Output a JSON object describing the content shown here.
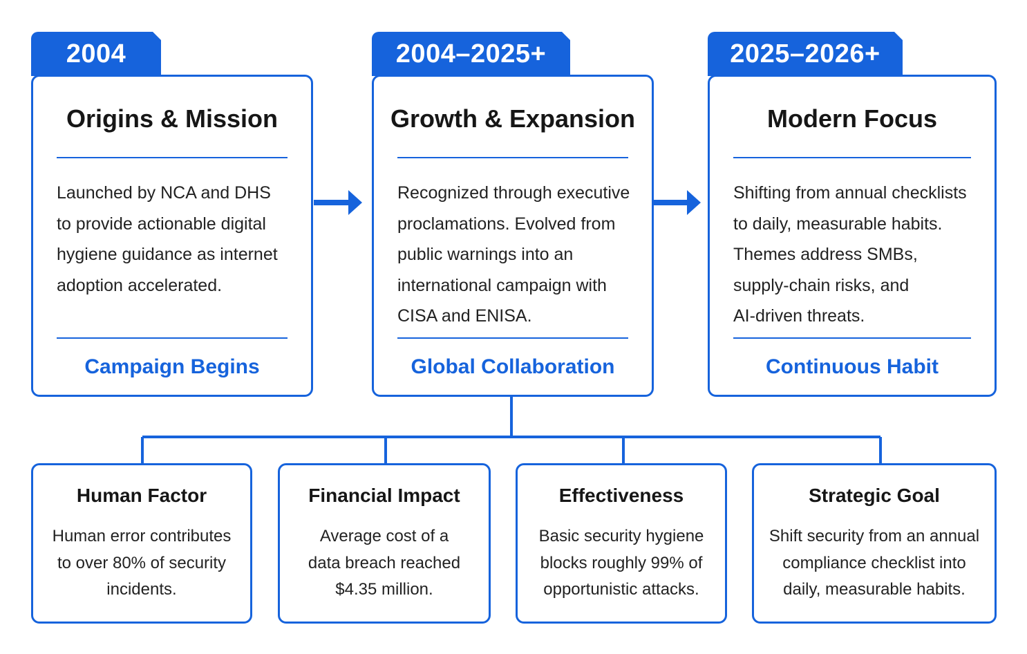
{
  "phases": [
    {
      "period": "2004",
      "title": "Origins & Mission",
      "body": [
        "Launched by NCA and DHS",
        "to provide actionable digital",
        "hygiene guidance as internet",
        "adoption accelerated."
      ],
      "footer": "Campaign Begins"
    },
    {
      "period": "2004–2025+",
      "title": "Growth & Expansion",
      "body": [
        "Recognized through executive",
        "proclamations. Evolved from",
        "public warnings into an",
        "international campaign with",
        "CISA and ENISA."
      ],
      "footer": "Global Collaboration"
    },
    {
      "period": "2025–2026+",
      "title": "Modern Focus",
      "body": [
        "Shifting from annual checklists",
        "to daily, measurable habits.",
        "Themes address SMBs,",
        "supply-chain risks, and",
        "AI-driven threats."
      ],
      "footer": "Continuous Habit"
    }
  ],
  "stats": [
    {
      "title": "Human Factor",
      "text": [
        "Human error contributes",
        "to over 80% of security",
        "incidents."
      ]
    },
    {
      "title": "Financial Impact",
      "text": [
        "Average cost of a",
        "data breach reached",
        "$4.35 million."
      ]
    },
    {
      "title": "Effectiveness",
      "text": [
        "Basic security hygiene",
        "blocks roughly 99% of",
        "opportunistic attacks."
      ]
    },
    {
      "title": "Strategic Goal",
      "text": [
        "Shift security from an annual",
        "compliance checklist into",
        "daily, measurable habits."
      ]
    }
  ],
  "colors": {
    "accent": "#1663dc",
    "text": "#1c1c1c",
    "background": "#ffffff"
  }
}
